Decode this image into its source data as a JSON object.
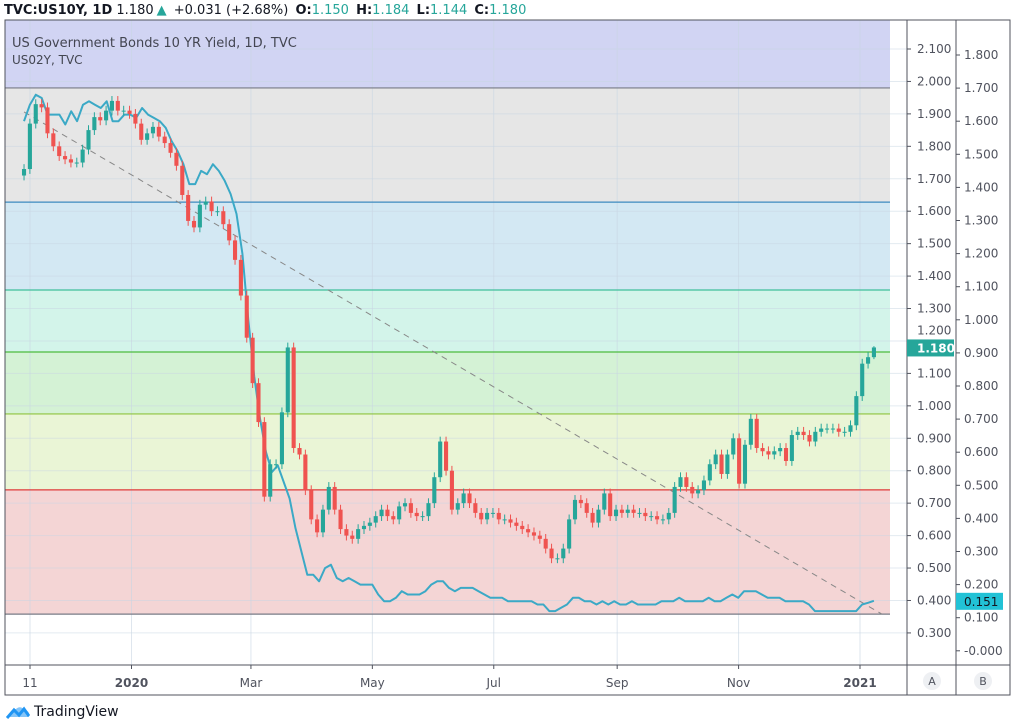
{
  "header": {
    "symbol": "TVC:US10Y, 1D",
    "last": "1.180",
    "change": "+0.031 (+2.68%)",
    "o_label": "O:",
    "o": "1.150",
    "h_label": "H:",
    "h": "1.184",
    "l_label": "L:",
    "l": "1.144",
    "c_label": "C:",
    "c": "1.180"
  },
  "legend": {
    "main": "US Government Bonds 10 YR Yield, 1D, TVC",
    "compare": "US02Y, TVC"
  },
  "brand": "TradingView",
  "chart_data": {
    "type": "candlestick+line",
    "x_range": [
      "2019-11-08",
      "2021-01-08"
    ],
    "x_ticks": [
      {
        "label": "11",
        "date": "2019-11-11",
        "bold": false
      },
      {
        "label": "2020",
        "date": "2020-01-01",
        "bold": true
      },
      {
        "label": "Mar",
        "date": "2020-03-01",
        "bold": false
      },
      {
        "label": "May",
        "date": "2020-05-01",
        "bold": false
      },
      {
        "label": "Jul",
        "date": "2020-07-01",
        "bold": false
      },
      {
        "label": "Sep",
        "date": "2020-09-01",
        "bold": false
      },
      {
        "label": "Nov",
        "date": "2020-11-01",
        "bold": false
      },
      {
        "label": "2021",
        "date": "2021-01-01",
        "bold": true
      }
    ],
    "axis_a": {
      "name": "A",
      "ylim": [
        0.18,
        2.18
      ],
      "ticks": [
        "2.100",
        "2.000",
        "1.900",
        "1.800",
        "1.700",
        "1.600",
        "1.500",
        "1.400",
        "1.300",
        "1.200",
        "1.100",
        "1.000",
        "0.900",
        "0.800",
        "0.700",
        "0.600",
        "0.500",
        "0.400",
        "0.300"
      ],
      "last_label": "1.180",
      "last_value": 1.18,
      "last_color": "#26a69a"
    },
    "axis_b": {
      "name": "B",
      "ylim": [
        -0.1,
        1.89
      ],
      "ticks": [
        "1.800",
        "1.700",
        "1.600",
        "1.500",
        "1.400",
        "1.300",
        "1.200",
        "1.100",
        "1.000",
        "0.900",
        "0.800",
        "0.700",
        "0.600",
        "0.500",
        "0.400",
        "0.300",
        "0.200",
        "0.100",
        "-0.000"
      ],
      "last_label": "0.151",
      "last_value": 0.151,
      "last_color": "#22c2d6"
    },
    "grid": true,
    "series": [
      {
        "name": "US10Y",
        "axis": "A",
        "style": "candles",
        "up_color": "#26a69a",
        "down_color": "#ef5350",
        "last_candle": {
          "o": 1.15,
          "h": 1.184,
          "l": 1.144,
          "c": 1.18
        },
        "closes": [
          1.73,
          1.87,
          1.93,
          1.92,
          1.84,
          1.8,
          1.77,
          1.76,
          1.75,
          1.75,
          1.79,
          1.85,
          1.89,
          1.88,
          1.91,
          1.94,
          1.91,
          1.91,
          1.9,
          1.87,
          1.82,
          1.84,
          1.86,
          1.83,
          1.81,
          1.78,
          1.74,
          1.65,
          1.57,
          1.55,
          1.62,
          1.63,
          1.6,
          1.6,
          1.56,
          1.51,
          1.45,
          1.34,
          1.21,
          1.07,
          0.95,
          0.72,
          0.82,
          0.82,
          0.98,
          1.18,
          0.87,
          0.85,
          0.74,
          0.65,
          0.61,
          0.68,
          0.75,
          0.68,
          0.62,
          0.6,
          0.59,
          0.62,
          0.63,
          0.64,
          0.66,
          0.68,
          0.66,
          0.65,
          0.69,
          0.7,
          0.67,
          0.66,
          0.66,
          0.7,
          0.78,
          0.89,
          0.8,
          0.68,
          0.7,
          0.73,
          0.7,
          0.67,
          0.65,
          0.67,
          0.67,
          0.65,
          0.65,
          0.64,
          0.63,
          0.62,
          0.61,
          0.6,
          0.59,
          0.56,
          0.53,
          0.53,
          0.56,
          0.65,
          0.71,
          0.7,
          0.67,
          0.64,
          0.68,
          0.73,
          0.66,
          0.68,
          0.67,
          0.68,
          0.67,
          0.67,
          0.66,
          0.66,
          0.65,
          0.65,
          0.67,
          0.75,
          0.78,
          0.75,
          0.73,
          0.74,
          0.77,
          0.82,
          0.85,
          0.79,
          0.85,
          0.9,
          0.76,
          0.88,
          0.96,
          0.87,
          0.86,
          0.85,
          0.86,
          0.87,
          0.83,
          0.91,
          0.92,
          0.91,
          0.89,
          0.92,
          0.93,
          0.93,
          0.93,
          0.92,
          0.92,
          0.94,
          1.03,
          1.13,
          1.15,
          1.18
        ]
      },
      {
        "name": "US02Y",
        "axis": "B",
        "style": "line",
        "color": "#3ba9c6",
        "values": [
          1.6,
          1.65,
          1.68,
          1.67,
          1.62,
          1.62,
          1.62,
          1.59,
          1.63,
          1.6,
          1.65,
          1.66,
          1.65,
          1.64,
          1.66,
          1.6,
          1.6,
          1.62,
          1.62,
          1.61,
          1.64,
          1.62,
          1.61,
          1.6,
          1.58,
          1.54,
          1.51,
          1.47,
          1.41,
          1.41,
          1.45,
          1.44,
          1.47,
          1.45,
          1.42,
          1.38,
          1.32,
          1.2,
          1.0,
          0.83,
          0.7,
          0.6,
          0.54,
          0.56,
          0.51,
          0.46,
          0.37,
          0.3,
          0.23,
          0.23,
          0.21,
          0.25,
          0.26,
          0.22,
          0.21,
          0.22,
          0.21,
          0.2,
          0.2,
          0.2,
          0.17,
          0.15,
          0.15,
          0.16,
          0.18,
          0.17,
          0.17,
          0.17,
          0.18,
          0.2,
          0.21,
          0.21,
          0.19,
          0.18,
          0.19,
          0.19,
          0.19,
          0.18,
          0.17,
          0.16,
          0.16,
          0.16,
          0.15,
          0.15,
          0.15,
          0.15,
          0.15,
          0.14,
          0.14,
          0.12,
          0.12,
          0.13,
          0.14,
          0.16,
          0.16,
          0.15,
          0.15,
          0.14,
          0.15,
          0.14,
          0.15,
          0.14,
          0.14,
          0.15,
          0.14,
          0.14,
          0.14,
          0.14,
          0.15,
          0.15,
          0.15,
          0.16,
          0.15,
          0.15,
          0.15,
          0.15,
          0.16,
          0.15,
          0.15,
          0.16,
          0.17,
          0.16,
          0.18,
          0.18,
          0.18,
          0.17,
          0.16,
          0.16,
          0.16,
          0.15,
          0.15,
          0.15,
          0.15,
          0.14,
          0.12,
          0.12,
          0.12,
          0.12,
          0.12,
          0.12,
          0.12,
          0.12,
          0.14,
          0.145,
          0.151
        ]
      }
    ],
    "fib_levels": [
      {
        "value": 2.2,
        "fill": "#d1d4f3"
      },
      {
        "value": 1.98,
        "line": "#787b86",
        "fill": "#e6e6e6"
      },
      {
        "value": 1.628,
        "line": "#3d8bc0",
        "fill": "#d3e8f3"
      },
      {
        "value": 1.357,
        "line": "#3fbf9a",
        "fill": "#d3f4ea"
      },
      {
        "value": 1.166,
        "line": "#4cbb3f",
        "fill": "#d4f2d5"
      },
      {
        "value": 0.975,
        "line": "#8fc43f",
        "fill": "#eaf5d6"
      },
      {
        "value": 0.741,
        "line": "#e03a3a",
        "fill": "#f4d5d5"
      },
      {
        "value": 0.358,
        "line": "#787b86"
      }
    ],
    "trend_line": {
      "from": {
        "date": "2019-11-08",
        "value": 1.906
      },
      "to": {
        "date": "2021-01-12",
        "value": 0.358
      },
      "style": "dashed",
      "color": "#888888"
    }
  }
}
